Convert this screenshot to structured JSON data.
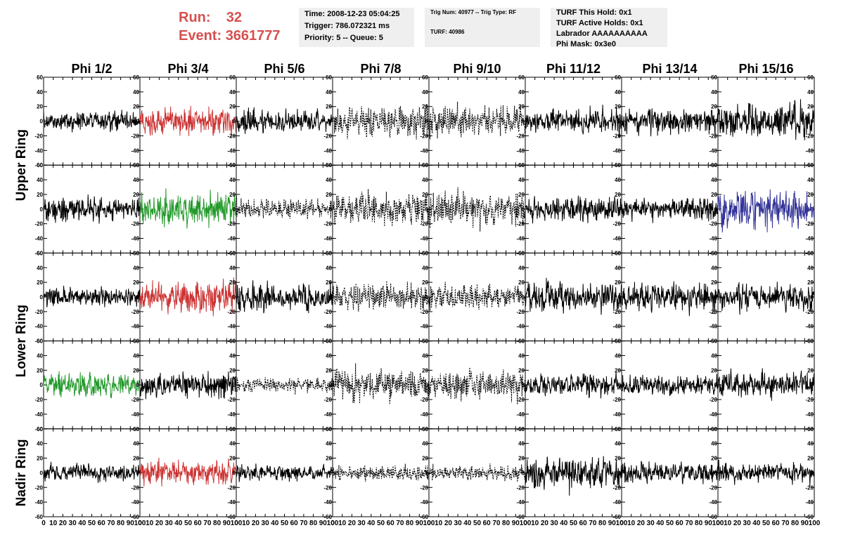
{
  "header": {
    "run_label": "Run:",
    "run_value": "32",
    "event_label": "Event:",
    "event_value": "3661777",
    "time_line": "Time: 2008-12-23 05:04:25",
    "trigger_line": "Trigger: 786.072321 ms",
    "priority_line": "Priority: 5 -- Queue: 5",
    "trig_num_line": "Trig Num: 40977 -- Trig Type: RF",
    "turf_line": "TURF: 40986",
    "turf_hold_line": "TURF This Hold: 0x1",
    "turf_active_line": "TURF Active Holds: 0x1",
    "labrador_line": "Labrador AAAAAAAAAA",
    "phi_mask_line": "Phi Mask: 0x3e0"
  },
  "colors": {
    "header_red": "#d65050",
    "trace_black": "#000000",
    "trace_red": "#cc3333",
    "trace_green": "#22992a",
    "trace_blue": "#333399",
    "info_box_bg": "#efefef"
  },
  "chart_data": {
    "type": "line",
    "column_labels": [
      "Phi 1/2",
      "Phi 3/4",
      "Phi 5/6",
      "Phi 7/8",
      "Phi 9/10",
      "Phi 11/12",
      "Phi 13/14",
      "Phi 15/16"
    ],
    "ring_labels": [
      "Upper Ring",
      "Lower Ring",
      "Nadir Ring"
    ],
    "xlim": [
      0,
      100
    ],
    "ylim": [
      -60,
      60
    ],
    "x_ticks": [
      "0",
      "10",
      "20",
      "30",
      "40",
      "50",
      "60",
      "70",
      "80",
      "90",
      "100"
    ],
    "y_ticks": [
      "60",
      "40",
      "20",
      "0",
      "-20",
      "-40",
      "-60"
    ],
    "grid": false,
    "panel_rows": 5,
    "panel_cols": 8,
    "panel_colors": [
      [
        "black",
        "red",
        "black",
        "black-dashed",
        "black-dashed",
        "black",
        "black",
        "black"
      ],
      [
        "black",
        "green",
        "black-dashed",
        "black-dashed",
        "black-dashed",
        "black",
        "black",
        "blue"
      ],
      [
        "black",
        "red",
        "black",
        "black-dashed",
        "black-dashed",
        "black",
        "black",
        "black"
      ],
      [
        "green",
        "black",
        "black-dashed",
        "black-dashed",
        "black-dashed",
        "black",
        "black",
        "black"
      ],
      [
        "black",
        "red",
        "black",
        "black-dashed",
        "black-dashed",
        "black",
        "black",
        "black"
      ]
    ],
    "panel_amplitude": [
      [
        18,
        25,
        22,
        30,
        28,
        22,
        24,
        30
      ],
      [
        22,
        32,
        18,
        28,
        30,
        24,
        20,
        34
      ],
      [
        18,
        28,
        24,
        24,
        22,
        26,
        28,
        24
      ],
      [
        22,
        24,
        14,
        30,
        26,
        20,
        20,
        22
      ],
      [
        16,
        22,
        14,
        14,
        14,
        30,
        18,
        18
      ]
    ]
  }
}
